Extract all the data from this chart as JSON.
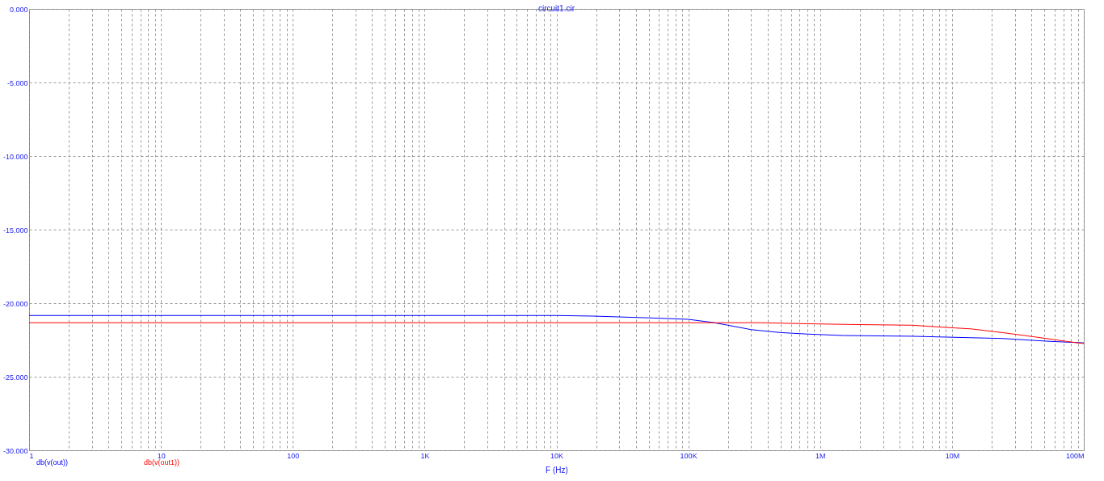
{
  "chart_data": {
    "type": "line",
    "title": "circuit1.cir",
    "xlabel": "F (Hz)",
    "log": "x",
    "grid": true,
    "legend": "bottom left",
    "marker": "none",
    "line_style": "solid",
    "xlim": [
      1,
      100000000
    ],
    "ylim": [
      -30,
      0
    ],
    "xticks": [
      {
        "value": 1,
        "label": "1"
      },
      {
        "value": 2,
        "label": null
      },
      {
        "value": 3,
        "label": null
      },
      {
        "value": 4,
        "label": null
      },
      {
        "value": 5,
        "label": null
      },
      {
        "value": 6,
        "label": null
      },
      {
        "value": 7,
        "label": null
      },
      {
        "value": 8,
        "label": null
      },
      {
        "value": 9,
        "label": null
      },
      {
        "value": 10,
        "label": "10"
      },
      {
        "value": 20,
        "label": null
      },
      {
        "value": 30,
        "label": null
      },
      {
        "value": 40,
        "label": null
      },
      {
        "value": 50,
        "label": null
      },
      {
        "value": 60,
        "label": null
      },
      {
        "value": 70,
        "label": null
      },
      {
        "value": 80,
        "label": null
      },
      {
        "value": 90,
        "label": null
      },
      {
        "value": 100,
        "label": "100"
      },
      {
        "value": 200,
        "label": null
      },
      {
        "value": 300,
        "label": null
      },
      {
        "value": 400,
        "label": null
      },
      {
        "value": 500,
        "label": null
      },
      {
        "value": 600,
        "label": null
      },
      {
        "value": 700,
        "label": null
      },
      {
        "value": 800,
        "label": null
      },
      {
        "value": 900,
        "label": null
      },
      {
        "value": 1000,
        "label": "1K"
      },
      {
        "value": 2000,
        "label": null
      },
      {
        "value": 3000,
        "label": null
      },
      {
        "value": 4000,
        "label": null
      },
      {
        "value": 5000,
        "label": null
      },
      {
        "value": 6000,
        "label": null
      },
      {
        "value": 7000,
        "label": null
      },
      {
        "value": 8000,
        "label": null
      },
      {
        "value": 9000,
        "label": null
      },
      {
        "value": 10000,
        "label": "10K"
      },
      {
        "value": 20000,
        "label": null
      },
      {
        "value": 30000,
        "label": null
      },
      {
        "value": 40000,
        "label": null
      },
      {
        "value": 50000,
        "label": null
      },
      {
        "value": 60000,
        "label": null
      },
      {
        "value": 70000,
        "label": null
      },
      {
        "value": 80000,
        "label": null
      },
      {
        "value": 90000,
        "label": null
      },
      {
        "value": 100000,
        "label": "100K"
      },
      {
        "value": 200000,
        "label": null
      },
      {
        "value": 300000,
        "label": null
      },
      {
        "value": 400000,
        "label": null
      },
      {
        "value": 500000,
        "label": null
      },
      {
        "value": 600000,
        "label": null
      },
      {
        "value": 700000,
        "label": null
      },
      {
        "value": 800000,
        "label": null
      },
      {
        "value": 900000,
        "label": null
      },
      {
        "value": 1000000,
        "label": "1M"
      },
      {
        "value": 2000000,
        "label": null
      },
      {
        "value": 3000000,
        "label": null
      },
      {
        "value": 4000000,
        "label": null
      },
      {
        "value": 5000000,
        "label": null
      },
      {
        "value": 6000000,
        "label": null
      },
      {
        "value": 7000000,
        "label": null
      },
      {
        "value": 8000000,
        "label": null
      },
      {
        "value": 9000000,
        "label": null
      },
      {
        "value": 10000000,
        "label": "10M"
      },
      {
        "value": 20000000,
        "label": null
      },
      {
        "value": 30000000,
        "label": null
      },
      {
        "value": 40000000,
        "label": null
      },
      {
        "value": 50000000,
        "label": null
      },
      {
        "value": 60000000,
        "label": null
      },
      {
        "value": 70000000,
        "label": null
      },
      {
        "value": 80000000,
        "label": null
      },
      {
        "value": 90000000,
        "label": null
      },
      {
        "value": 100000000,
        "label": "100M"
      }
    ],
    "yticks": [
      {
        "value": 0,
        "label": "0.000"
      },
      {
        "value": -5,
        "label": "-5.000"
      },
      {
        "value": -10,
        "label": "-10.000"
      },
      {
        "value": -15,
        "label": "-15.000"
      },
      {
        "value": -20,
        "label": "-20.000"
      },
      {
        "value": -25,
        "label": "-25.000"
      },
      {
        "value": -30,
        "label": "-30.000"
      }
    ],
    "series": [
      {
        "name": "db(v(out))",
        "color": "#0000ff",
        "x": [
          1,
          10000,
          19000,
          50000,
          100000,
          150000,
          200000,
          300000,
          500000,
          800000,
          1500000,
          5000000,
          14000000,
          24000000,
          56000000,
          100000000
        ],
        "values": [
          -20.84,
          -20.84,
          -20.88,
          -21.0,
          -21.1,
          -21.3,
          -21.5,
          -21.8,
          -22.0,
          -22.1,
          -22.2,
          -22.25,
          -22.35,
          -22.4,
          -22.6,
          -22.7
        ]
      },
      {
        "name": "db(v(out1))",
        "color": "#ff0000",
        "x": [
          1,
          350000,
          800000,
          1700000,
          5000000,
          9000000,
          14000000,
          24000000,
          43000000,
          74000000,
          100000000
        ],
        "values": [
          -21.33,
          -21.33,
          -21.4,
          -21.45,
          -21.5,
          -21.65,
          -21.75,
          -22.0,
          -22.3,
          -22.6,
          -22.75
        ]
      }
    ]
  }
}
